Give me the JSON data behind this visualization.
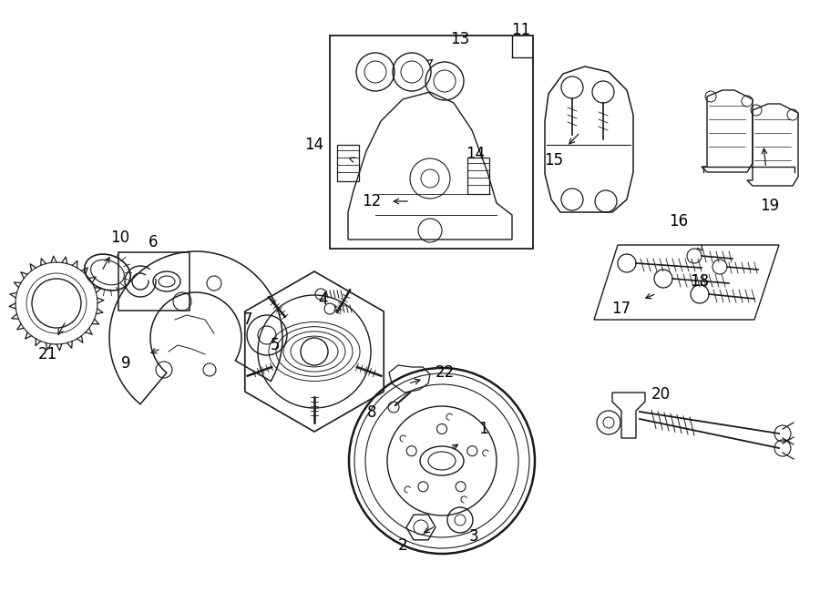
{
  "bg_color": "#ffffff",
  "lc": "#1a1a1a",
  "fig_width": 9.0,
  "fig_height": 6.61,
  "dpi": 100,
  "xlim": [
    0,
    9.0
  ],
  "ylim": [
    0,
    6.61
  ]
}
